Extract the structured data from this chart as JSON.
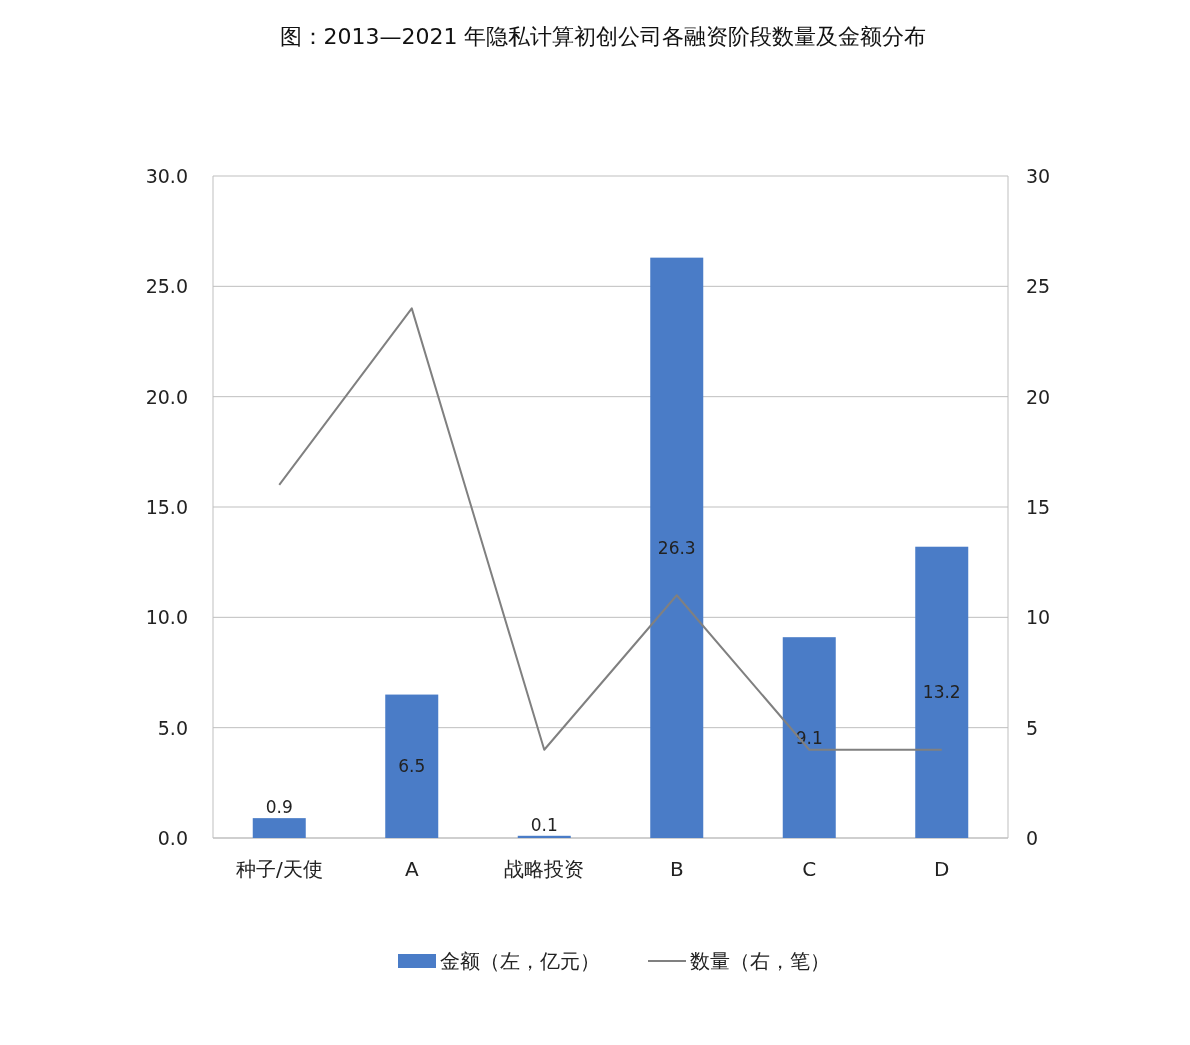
{
  "chart_data": {
    "type": "bar",
    "title": "图：2013—2021 年隐私计算初创公司各融资阶段数量及金额分布",
    "categories": [
      "种子/天使",
      "A",
      "战略投资",
      "B",
      "C",
      "D"
    ],
    "series": [
      {
        "name": "金额（左，亿元）",
        "color": "#4a7cc7",
        "values": [
          0.9,
          6.5,
          0.1,
          26.3,
          9.1,
          13.2
        ],
        "value_labels": [
          "0.9",
          "6.5",
          "0.1",
          "26.3",
          "9.1",
          "13.2"
        ]
      },
      {
        "name": "数量（右，笔）",
        "type": "line",
        "axis": "y2",
        "color": "#808080",
        "values": [
          16,
          24,
          4,
          11,
          4,
          4
        ]
      }
    ],
    "ylim": [
      0,
      30
    ],
    "yticks": [
      {
        "value": 0,
        "label": "0.0"
      },
      {
        "value": 5,
        "label": "5.0"
      },
      {
        "value": 10,
        "label": "10.0"
      },
      {
        "value": 15,
        "label": "15.0"
      },
      {
        "value": 20,
        "label": "20.0"
      },
      {
        "value": 25,
        "label": "25.0"
      },
      {
        "value": 30,
        "label": "30.0"
      }
    ],
    "y2lim": [
      0,
      30
    ],
    "y2ticks": [
      0,
      5,
      10,
      15,
      20,
      25,
      30
    ],
    "grid": "y",
    "legend": "bottom",
    "marker": "none",
    "line_style": "solid"
  }
}
